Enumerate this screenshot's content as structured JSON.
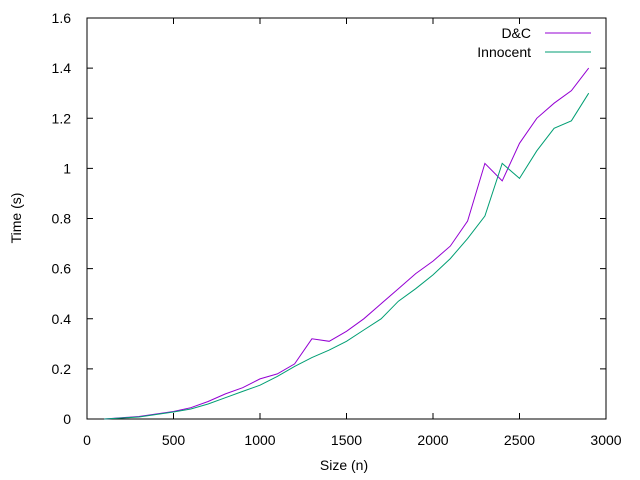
{
  "chart_data": {
    "type": "line",
    "title": "",
    "xlabel": "Size (n)",
    "ylabel": "Time (s)",
    "xlim": [
      0,
      3000
    ],
    "ylim": [
      0,
      1.6
    ],
    "x_ticks": [
      0,
      500,
      1000,
      1500,
      2000,
      2500,
      3000
    ],
    "y_ticks": [
      0,
      0.2,
      0.4,
      0.6,
      0.8,
      1.0,
      1.2,
      1.4,
      1.6
    ],
    "x_tick_labels": [
      "0",
      "500",
      "1000",
      "1500",
      "2000",
      "2500",
      "3000"
    ],
    "y_tick_labels": [
      "0",
      "0.2",
      "0.4",
      "0.6",
      "0.8",
      "1",
      "1.2",
      "1.4",
      "1.6"
    ],
    "grid": false,
    "legend_position": "top-right",
    "series": [
      {
        "name": "D&C",
        "color": "#9400d3",
        "x": [
          100,
          200,
          300,
          400,
          500,
          600,
          700,
          800,
          900,
          1000,
          1100,
          1200,
          1300,
          1400,
          1500,
          1600,
          1700,
          1800,
          1900,
          2000,
          2100,
          2200,
          2300,
          2400,
          2500,
          2600,
          2700,
          2800,
          2900
        ],
        "y": [
          0.0,
          0.005,
          0.01,
          0.02,
          0.03,
          0.045,
          0.07,
          0.1,
          0.125,
          0.16,
          0.18,
          0.22,
          0.32,
          0.31,
          0.35,
          0.4,
          0.46,
          0.52,
          0.58,
          0.63,
          0.69,
          0.79,
          1.02,
          0.95,
          1.1,
          1.2,
          1.26,
          1.31,
          1.4
        ]
      },
      {
        "name": "Innocent",
        "color": "#009e73",
        "x": [
          100,
          200,
          300,
          400,
          500,
          600,
          700,
          800,
          900,
          1000,
          1100,
          1200,
          1300,
          1400,
          1500,
          1600,
          1700,
          1800,
          1900,
          2000,
          2100,
          2200,
          2300,
          2400,
          2500,
          2600,
          2700,
          2800,
          2900
        ],
        "y": [
          0.0,
          0.004,
          0.008,
          0.018,
          0.028,
          0.04,
          0.06,
          0.085,
          0.11,
          0.135,
          0.17,
          0.21,
          0.245,
          0.275,
          0.31,
          0.355,
          0.4,
          0.47,
          0.52,
          0.575,
          0.64,
          0.72,
          0.81,
          1.02,
          0.96,
          1.07,
          1.16,
          1.19,
          1.3
        ]
      }
    ]
  }
}
